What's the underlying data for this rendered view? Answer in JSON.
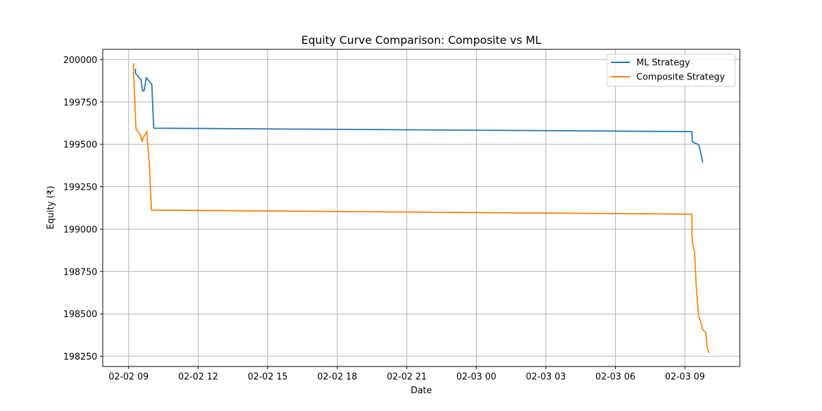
{
  "chart_data": {
    "type": "line",
    "title": "Equity Curve Comparison: Composite vs ML",
    "xlabel": "Date",
    "ylabel": "Equity (₹)",
    "x_ticks": [
      {
        "t": "2025-02-02 09:00",
        "label": "02-02 09"
      },
      {
        "t": "2025-02-02 12:00",
        "label": "02-02 12"
      },
      {
        "t": "2025-02-02 15:00",
        "label": "02-02 15"
      },
      {
        "t": "2025-02-02 18:00",
        "label": "02-02 18"
      },
      {
        "t": "2025-02-02 21:00",
        "label": "02-02 21"
      },
      {
        "t": "2025-02-03 00:00",
        "label": "02-03 00"
      },
      {
        "t": "2025-02-03 03:00",
        "label": "02-03 03"
      },
      {
        "t": "2025-02-03 06:00",
        "label": "02-03 06"
      },
      {
        "t": "2025-02-03 09:00",
        "label": "02-03 09"
      }
    ],
    "y_ticks": [
      200000,
      199750,
      199500,
      199250,
      199000,
      198750,
      198500,
      198250
    ],
    "xlim": [
      "2025-02-02 07:53",
      "2025-02-03 11:22"
    ],
    "ylim": [
      198190,
      200060
    ],
    "grid": true,
    "legend_position": "top-right",
    "series": [
      {
        "name": "ML Strategy",
        "color": "#1f77b4",
        "points": [
          [
            "2025-02-02 09:18",
            199945
          ],
          [
            "2025-02-02 09:18",
            199918
          ],
          [
            "2025-02-02 09:32",
            199880
          ],
          [
            "2025-02-02 09:36",
            199815
          ],
          [
            "2025-02-02 09:40",
            199815
          ],
          [
            "2025-02-02 09:46",
            199893
          ],
          [
            "2025-02-02 09:54",
            199870
          ],
          [
            "2025-02-02 10:00",
            199855
          ],
          [
            "2025-02-02 10:05",
            199595
          ],
          [
            "2025-02-03 09:18",
            199575
          ],
          [
            "2025-02-03 09:19",
            199515
          ],
          [
            "2025-02-03 09:36",
            199497
          ],
          [
            "2025-02-03 09:41",
            199450
          ],
          [
            "2025-02-03 09:46",
            199392
          ]
        ]
      },
      {
        "name": "Composite Strategy",
        "color": "#ff7f0e",
        "points": [
          [
            "2025-02-02 09:13",
            199978
          ],
          [
            "2025-02-02 09:13",
            199920
          ],
          [
            "2025-02-02 09:19",
            199590
          ],
          [
            "2025-02-02 09:30",
            199555
          ],
          [
            "2025-02-02 09:35",
            199515
          ],
          [
            "2025-02-02 09:36",
            199532
          ],
          [
            "2025-02-02 09:43",
            199557
          ],
          [
            "2025-02-02 09:47",
            199577
          ],
          [
            "2025-02-02 09:48",
            199540
          ],
          [
            "2025-02-02 09:54",
            199370
          ],
          [
            "2025-02-02 09:59",
            199112
          ],
          [
            "2025-02-03 09:18",
            199088
          ],
          [
            "2025-02-03 09:18",
            198965
          ],
          [
            "2025-02-03 09:21",
            198900
          ],
          [
            "2025-02-03 09:25",
            198870
          ],
          [
            "2025-02-03 09:29",
            198670
          ],
          [
            "2025-02-03 09:35",
            198490
          ],
          [
            "2025-02-03 09:41",
            198455
          ],
          [
            "2025-02-03 09:45",
            198410
          ],
          [
            "2025-02-03 09:54",
            198390
          ],
          [
            "2025-02-03 09:58",
            198300
          ],
          [
            "2025-02-03 10:02",
            198270
          ]
        ]
      }
    ]
  }
}
